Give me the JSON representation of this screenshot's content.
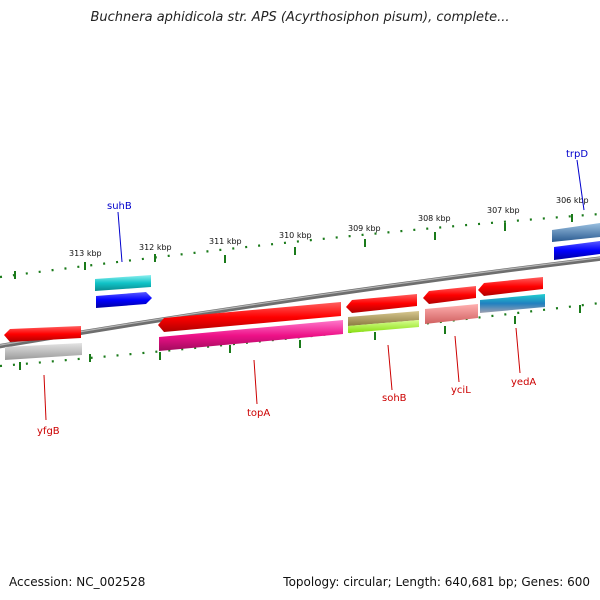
{
  "title": "Buchnera aphidicola str. APS (Acyrthosiphon pisum), complete...",
  "footer": {
    "accession": "Accession: NC_002528",
    "summary": "Topology: circular; Length: 640,681 bp; Genes: 600"
  },
  "ticks": [
    "313 kbp",
    "312 kbp",
    "311 kbp",
    "310 kbp",
    "309 kbp",
    "308 kbp",
    "307 kbp",
    "306 kbp"
  ],
  "gene_labels": {
    "suhB": "suhB",
    "trpD": "trpD",
    "yfgB": "yfgB",
    "topA": "topA",
    "sohB": "sohB",
    "yciL": "yciL",
    "yedA": "yedA"
  },
  "colors": {
    "backbone": "#7a7a7a",
    "tick": "#1a7a1a",
    "forward_label": "#0000cc",
    "reverse_label": "#cc0000",
    "red": "#ff0000",
    "blue": "#0000ff",
    "teal": "#11c4c8",
    "magenta": "#ee1188",
    "olive": "#b0a060",
    "lime": "#aaff33",
    "salmon": "#f08080",
    "gray": "#b8b8b8",
    "steel": "#4a7ab0"
  }
}
